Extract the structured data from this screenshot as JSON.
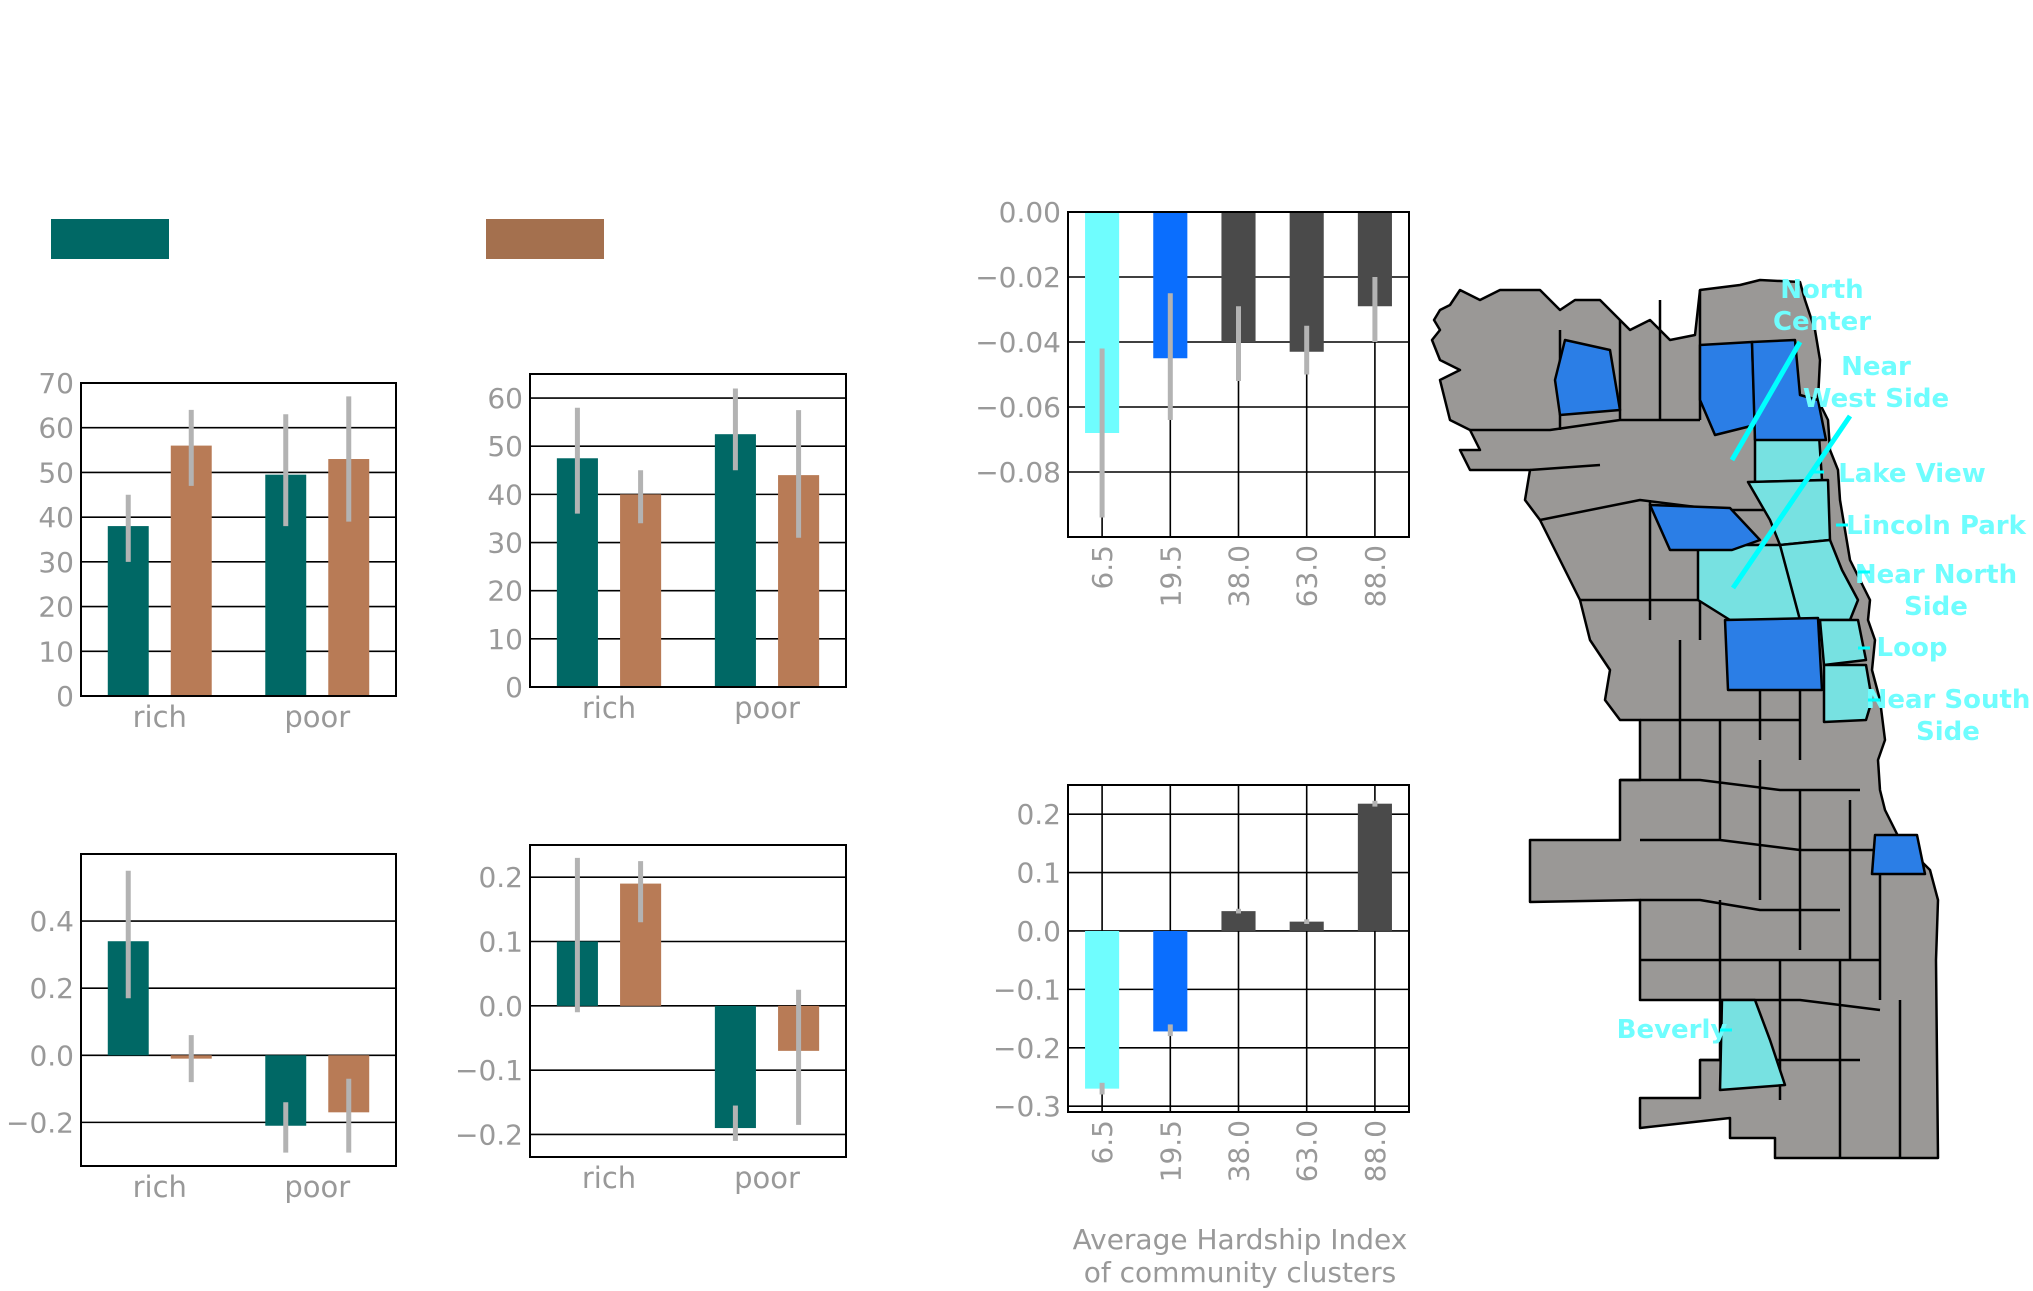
{
  "legend": {
    "items": [
      {
        "color": "#006865"
      },
      {
        "color": "#a4704e"
      }
    ]
  },
  "colors": {
    "teal": "#006865",
    "tan": "#b87b56",
    "error": "#b3b3b3",
    "tick": "#999999",
    "cyan": "#6ffdfe",
    "blue": "#0a6efe",
    "dark": "#4a4a4a"
  },
  "chart_data": [
    {
      "type": "bar",
      "categories": [
        "rich",
        "poor"
      ],
      "ylim": [
        0,
        70
      ],
      "yticks": [
        0,
        10,
        20,
        30,
        40,
        50,
        60,
        70
      ],
      "grid": true,
      "series": [
        {
          "color": "#006865",
          "values": [
            38,
            49.5
          ],
          "err_low": [
            30,
            38
          ],
          "err_high": [
            45,
            63
          ]
        },
        {
          "color": "#b87b56",
          "values": [
            56,
            53
          ],
          "err_low": [
            47,
            39
          ],
          "err_high": [
            64,
            67
          ]
        }
      ]
    },
    {
      "type": "bar",
      "categories": [
        "rich",
        "poor"
      ],
      "ylim": [
        0,
        65
      ],
      "yticks": [
        0,
        10,
        20,
        30,
        40,
        50,
        60
      ],
      "grid": true,
      "series": [
        {
          "color": "#006865",
          "values": [
            47.5,
            52.5
          ],
          "err_low": [
            36,
            45
          ],
          "err_high": [
            58,
            62
          ]
        },
        {
          "color": "#b87b56",
          "values": [
            40,
            44
          ],
          "err_low": [
            34,
            31
          ],
          "err_high": [
            45,
            57.5
          ]
        }
      ]
    },
    {
      "type": "bar",
      "categories": [
        "rich",
        "poor"
      ],
      "ylim": [
        -0.33,
        0.6
      ],
      "yticks": [
        "0.4",
        "0.2",
        "0.0",
        "−0.2"
      ],
      "ytick_values": [
        0.4,
        0.2,
        0.0,
        -0.2
      ],
      "grid": true,
      "series": [
        {
          "color": "#006865",
          "values": [
            0.34,
            -0.21
          ],
          "err_low": [
            0.17,
            -0.29
          ],
          "err_high": [
            0.55,
            -0.14
          ]
        },
        {
          "color": "#b87b56",
          "values": [
            -0.01,
            -0.17
          ],
          "err_low": [
            -0.08,
            -0.29
          ],
          "err_high": [
            0.06,
            -0.07
          ]
        }
      ]
    },
    {
      "type": "bar",
      "categories": [
        "rich",
        "poor"
      ],
      "ylim": [
        -0.235,
        0.25
      ],
      "yticks": [
        "0.2",
        "0.1",
        "0.0",
        "−0.1",
        "−0.2"
      ],
      "ytick_values": [
        0.2,
        0.1,
        0.0,
        -0.1,
        -0.2
      ],
      "grid": true,
      "series": [
        {
          "color": "#006865",
          "values": [
            0.1,
            -0.19
          ],
          "err_low": [
            -0.01,
            -0.21
          ],
          "err_high": [
            0.23,
            -0.155
          ]
        },
        {
          "color": "#b87b56",
          "values": [
            0.19,
            -0.07
          ],
          "err_low": [
            0.13,
            -0.185
          ],
          "err_high": [
            0.225,
            0.025
          ]
        }
      ]
    },
    {
      "type": "bar",
      "categories": [
        "6.5",
        "19.5",
        "38.0",
        "63.0",
        "88.0"
      ],
      "ylim": [
        -0.1,
        0.0
      ],
      "yticks": [
        "0.00",
        "−0.02",
        "−0.04",
        "−0.06",
        "−0.08"
      ],
      "ytick_values": [
        0.0,
        -0.02,
        -0.04,
        -0.06,
        -0.08
      ],
      "grid": true,
      "bar_colors": [
        "#6ffdfe",
        "#0a6efe",
        "#4a4a4a",
        "#4a4a4a",
        "#4a4a4a"
      ],
      "values": [
        -0.068,
        -0.045,
        -0.04,
        -0.043,
        -0.029
      ],
      "err_low": [
        -0.094,
        -0.064,
        -0.052,
        -0.05,
        -0.04
      ],
      "err_high": [
        -0.042,
        -0.025,
        -0.029,
        -0.035,
        -0.02
      ]
    },
    {
      "type": "bar",
      "categories": [
        "6.5",
        "19.5",
        "38.0",
        "63.0",
        "88.0"
      ],
      "ylim": [
        -0.31,
        0.25
      ],
      "yticks": [
        "0.2",
        "0.1",
        "0.0",
        "−0.1",
        "−0.2",
        "−0.3"
      ],
      "ytick_values": [
        0.2,
        0.1,
        0.0,
        -0.1,
        -0.2,
        -0.3
      ],
      "grid": true,
      "xlabel_lines": [
        "Average Hardship Index",
        "of community clusters"
      ],
      "bar_colors": [
        "#6ffdfe",
        "#0a6efe",
        "#4a4a4a",
        "#4a4a4a",
        "#4a4a4a"
      ],
      "values": [
        -0.27,
        -0.172,
        0.034,
        0.016,
        0.218
      ],
      "err_low": [
        -0.28,
        -0.18,
        0.03,
        0.012,
        0.213
      ],
      "err_high": [
        -0.26,
        -0.16,
        0.038,
        0.02,
        0.223
      ]
    }
  ],
  "map": {
    "label_color": "#6ffdfe",
    "labels": [
      {
        "lines": [
          "North",
          "Center"
        ]
      },
      {
        "lines": [
          "Near",
          "West Side"
        ]
      },
      {
        "lines": [
          "Lake View"
        ]
      },
      {
        "lines": [
          "Lincoln Park"
        ]
      },
      {
        "lines": [
          "Near North",
          "Side"
        ]
      },
      {
        "lines": [
          "Loop"
        ]
      },
      {
        "lines": [
          "Near South",
          "Side"
        ]
      },
      {
        "lines": [
          "Beverly"
        ]
      }
    ]
  }
}
